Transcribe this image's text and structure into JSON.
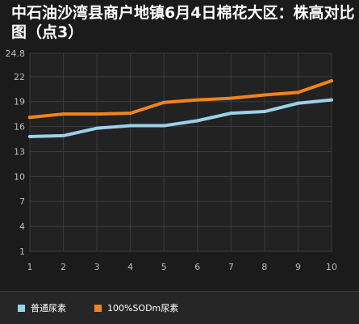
{
  "title": "中石油沙湾县商户地镇6月4日棉花大区：株高对比图（点3）",
  "colors": {
    "background": "#1b1b1b",
    "plot_background": "#222222",
    "grid": "#3b3b3b",
    "series_1": "#9ad2ea",
    "series_2": "#f0841e"
  },
  "chart_data": {
    "type": "line",
    "title": "中石油沙湾县商户地镇6月4日棉花大区：株高对比图（点3）",
    "xlabel": "",
    "ylabel": "",
    "x": [
      1,
      2,
      3,
      4,
      5,
      6,
      7,
      8,
      9,
      10
    ],
    "x_tick_labels": [
      "1",
      "2",
      "3",
      "4",
      "5",
      "6",
      "7",
      "8",
      "9",
      "10"
    ],
    "y_ticks": [
      1,
      4,
      7,
      10,
      13,
      16,
      19,
      22,
      24.8
    ],
    "y_tick_labels": [
      "1",
      "4",
      "7",
      "10",
      "13",
      "16",
      "19",
      "22",
      "24.8"
    ],
    "ylim": [
      1,
      24.8
    ],
    "grid": true,
    "legend_position": "bottom",
    "series": [
      {
        "name": "普通尿素",
        "color": "#9ad2ea",
        "values": [
          14.8,
          14.9,
          15.8,
          16.1,
          16.1,
          16.7,
          17.6,
          17.8,
          18.8,
          19.2
        ]
      },
      {
        "name": "100%SODm尿素",
        "color": "#f0841e",
        "values": [
          17.1,
          17.5,
          17.5,
          17.6,
          18.9,
          19.2,
          19.4,
          19.8,
          20.1,
          21.5
        ]
      }
    ]
  }
}
